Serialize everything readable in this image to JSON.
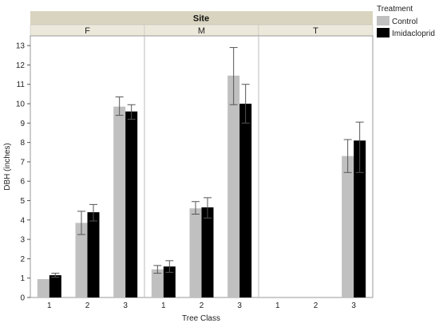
{
  "chart_data": {
    "type": "bar",
    "facet_title": "Site",
    "panels": [
      "F",
      "M",
      "T"
    ],
    "categories": [
      "1",
      "2",
      "3"
    ],
    "xlabel": "Tree Class",
    "ylabel": "DBH (inches)",
    "ylim": [
      0,
      13.5
    ],
    "yticks": [
      0,
      1,
      2,
      3,
      4,
      5,
      6,
      7,
      8,
      9,
      10,
      11,
      12,
      13
    ],
    "grid": false,
    "legend": {
      "title": "Treatment",
      "position": "top-right"
    },
    "series": [
      {
        "name": "Control",
        "color": "#c0c0c0",
        "values": [
          [
            0.95,
            3.85,
            9.85
          ],
          [
            1.45,
            4.6,
            11.45
          ],
          [
            null,
            null,
            7.3
          ]
        ],
        "err_low": [
          [
            0.95,
            3.25,
            9.4
          ],
          [
            1.25,
            4.3,
            9.95
          ],
          [
            null,
            null,
            6.45
          ]
        ],
        "err_high": [
          [
            0.95,
            4.45,
            10.35
          ],
          [
            1.65,
            4.95,
            12.9
          ],
          [
            null,
            null,
            8.15
          ]
        ]
      },
      {
        "name": "Imidacloprid",
        "color": "#000000",
        "values": [
          [
            1.15,
            4.4,
            9.6
          ],
          [
            1.6,
            4.65,
            10.0
          ],
          [
            null,
            null,
            8.1
          ]
        ],
        "err_low": [
          [
            1.05,
            3.95,
            9.2
          ],
          [
            1.3,
            4.1,
            9.0
          ],
          [
            null,
            null,
            6.45
          ]
        ],
        "err_high": [
          [
            1.25,
            4.8,
            9.95
          ],
          [
            1.9,
            5.15,
            11.0
          ],
          [
            null,
            null,
            9.05
          ]
        ]
      }
    ]
  }
}
